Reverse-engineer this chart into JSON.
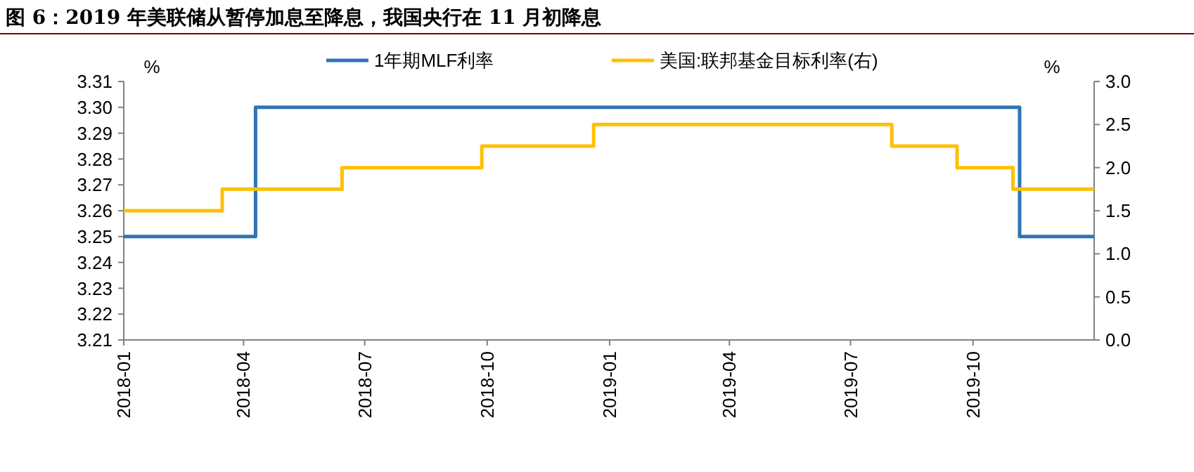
{
  "chart_data": {
    "type": "step",
    "title": "图 6：2019 年美联储从暂停加息至降息，我国央行在 11 月初降息",
    "ylabel": "%",
    "y2label": "%",
    "legend": "top",
    "xlim": [
      "2018-01-01",
      "2019-12-31"
    ],
    "xticks": [
      "2018-01",
      "2018-04",
      "2018-07",
      "2018-10",
      "2019-01",
      "2019-04",
      "2019-07",
      "2019-10"
    ],
    "ylim": [
      3.21,
      3.31
    ],
    "yticks": [
      3.21,
      3.22,
      3.23,
      3.24,
      3.25,
      3.26,
      3.27,
      3.28,
      3.29,
      {
        "value": 3.3,
        "label": "3.30"
      },
      3.31
    ],
    "y2lim": [
      0,
      3
    ],
    "y2ticks": [
      {
        "value": 0,
        "label": "0.0"
      },
      0.5,
      {
        "value": 1,
        "label": "1.0"
      },
      1.5,
      {
        "value": 2,
        "label": "2.0"
      },
      2.5,
      {
        "value": 3,
        "label": "3.0"
      }
    ],
    "series": [
      {
        "name": "1年期MLF利率",
        "color": "#2e75b6",
        "x": [
          "2018-01-01",
          "2018-04-10",
          "2019-11-05",
          "2019-12-31"
        ],
        "values": [
          3.25,
          3.3,
          3.25,
          3.25
        ]
      },
      {
        "name": "美国:联邦基金目标利率(右)",
        "color": "#ffc000",
        "axis": "y2",
        "x": [
          "2018-01-01",
          "2018-03-16",
          "2018-06-14",
          "2018-09-27",
          "2018-12-20",
          "2019-08-01",
          "2019-09-19",
          "2019-10-31",
          "2019-12-31"
        ],
        "values": [
          1.5,
          1.75,
          2,
          2.25,
          2.5,
          2.25,
          2,
          1.75,
          1.75
        ]
      }
    ]
  }
}
